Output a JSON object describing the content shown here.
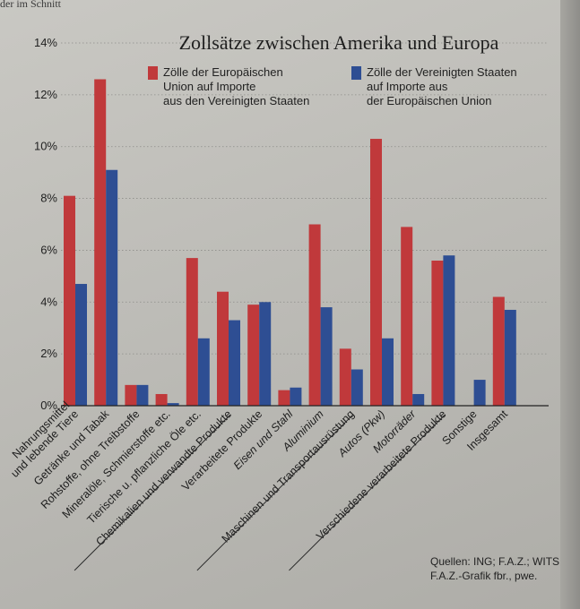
{
  "page_snippet": "der im Schnitt",
  "source_lines": [
    "Quellen: ING; F.A.Z.; WITS",
    "F.A.Z.-Grafik fbr., pwe."
  ],
  "chart_data": {
    "type": "bar",
    "title": "Zollsätze zwischen Amerika und Europa",
    "ylabel": "",
    "xlabel": "",
    "ylim": [
      0,
      14
    ],
    "yticks": [
      0,
      2,
      4,
      6,
      8,
      10,
      12,
      14
    ],
    "ytick_labels": [
      "0%",
      "2%",
      "4%",
      "6%",
      "8%",
      "10%",
      "12%",
      "14%"
    ],
    "grid": "horizontal dotted",
    "legend_position": "top",
    "categories": [
      "Nahrungsmittel und lebende Tiere",
      "Getränke und Tabak",
      "Rohstoffe, ohne Treibstoffe",
      "Mineralöle, Schmierstoffe etc.",
      "Tierische u. pflanzliche Öle etc.",
      "Chemikalien und verwandte Produkte",
      "Verarbeitete Produkte",
      "Eisen und Stahl",
      "Aluminium",
      "Maschinen und Transportausrüstung",
      "Autos (Pkw)",
      "Motorräder",
      "Verschiedene verarbeitete Produkte",
      "Sonstige",
      "Insgesamt"
    ],
    "category_label_lines": [
      [
        "Nahrungsmittel",
        "und lebende Tiere"
      ],
      [
        "Getränke und Tabak"
      ],
      [
        "Rohstoffe, ohne Treibstoffe"
      ],
      [
        "Mineralöle, Schmierstoffe etc."
      ],
      [
        "Tierische u. pflanzliche Öle etc."
      ],
      [
        "Chemikalien und verwandte Produkte"
      ],
      [
        "Verarbeitete Produkte"
      ],
      [
        "Eisen und Stahl"
      ],
      [
        "Aluminium"
      ],
      [
        "Maschinen und Transportausrüstung"
      ],
      [
        "Autos (Pkw)"
      ],
      [
        "Motorräder"
      ],
      [
        "Verschiedene verarbeitete Produkte"
      ],
      [
        "Sonstige"
      ],
      [
        "Insgesamt"
      ]
    ],
    "italic_categories": [
      "Eisen und Stahl",
      "Aluminium",
      "Autos (Pkw)",
      "Motorräder"
    ],
    "series": [
      {
        "name": "Zölle der Europäischen Union auf Importe aus den Vereinigten Staaten",
        "name_lines": [
          "Zölle der Europäischen",
          "Union auf Importe",
          "aus den Vereinigten Staaten"
        ],
        "color": "#c0393b",
        "values": [
          8.1,
          12.6,
          0.8,
          0.45,
          5.7,
          4.4,
          3.9,
          0.6,
          7.0,
          2.2,
          10.3,
          6.9,
          5.6,
          0.0,
          4.2
        ]
      },
      {
        "name": "Zölle der Vereinigten Staaten auf Importe aus der Europäischen Union",
        "name_lines": [
          "Zölle der Vereinigten Staaten",
          "auf Importe aus",
          "der Europäischen Union"
        ],
        "color": "#2e4e93",
        "values": [
          4.7,
          9.1,
          0.8,
          0.1,
          2.6,
          3.3,
          4.0,
          0.7,
          3.8,
          1.4,
          2.6,
          0.45,
          5.8,
          1.0,
          3.7
        ]
      }
    ]
  }
}
